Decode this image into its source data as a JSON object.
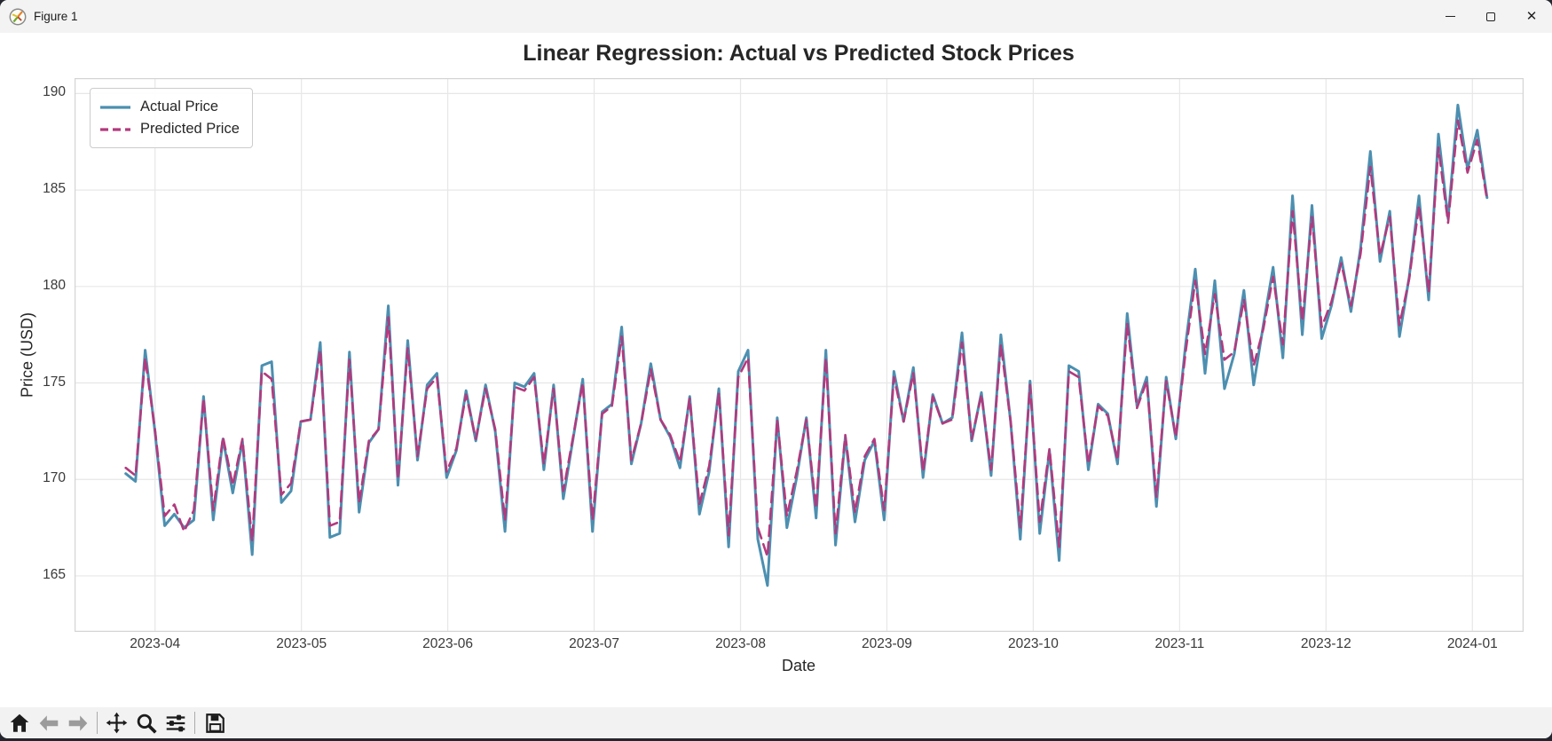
{
  "window": {
    "title": "Figure 1",
    "app_icon": "matplotlib-logo",
    "controls": [
      "minimize",
      "maximize",
      "close"
    ]
  },
  "chart_data": {
    "type": "line",
    "title": "Linear Regression: Actual vs Predicted Stock Prices",
    "xlabel": "Date",
    "ylabel": "Price (USD)",
    "grid": true,
    "legend_position": "upper left",
    "x_tick_labels": [
      "2023-04",
      "2023-05",
      "2023-06",
      "2023-07",
      "2023-08",
      "2023-09",
      "2023-10",
      "2023-11",
      "2023-12",
      "2024-01"
    ],
    "y_ticks": [
      165,
      170,
      175,
      180,
      185,
      190
    ],
    "ylim": [
      162.1,
      190.8
    ],
    "x_axis": {
      "domain_months": [
        -0.55,
        9.35
      ],
      "data_start_month": -0.2,
      "data_end_month": 9.1
    },
    "series": [
      {
        "name": "Actual Price",
        "color": "#4c8fb0",
        "style": "solid",
        "linewidth": 3,
        "values": [
          170.3,
          169.9,
          176.7,
          172.5,
          167.6,
          168.2,
          167.5,
          167.9,
          174.3,
          167.9,
          172.1,
          169.3,
          172.0,
          166.1,
          175.9,
          176.1,
          168.8,
          169.4,
          173.0,
          173.1,
          177.1,
          167.0,
          167.2,
          176.6,
          168.3,
          171.9,
          172.6,
          179.0,
          169.7,
          177.2,
          171.0,
          174.9,
          175.5,
          170.1,
          171.5,
          174.6,
          172.0,
          174.9,
          172.5,
          167.3,
          175.0,
          174.8,
          175.5,
          170.5,
          174.9,
          169.0,
          172.1,
          175.2,
          167.3,
          173.5,
          173.9,
          177.9,
          170.8,
          172.9,
          176.0,
          173.1,
          172.2,
          170.6,
          174.3,
          168.2,
          170.4,
          174.7,
          166.5,
          175.6,
          176.7,
          166.9,
          164.5,
          173.2,
          167.5,
          170.1,
          173.2,
          168.0,
          176.7,
          166.6,
          172.2,
          167.8,
          171.0,
          172.0,
          167.9,
          175.6,
          173.0,
          175.8,
          170.1,
          174.4,
          172.9,
          173.2,
          177.6,
          172.0,
          174.5,
          170.2,
          177.5,
          173.0,
          166.9,
          175.1,
          167.2,
          171.5,
          165.8,
          175.9,
          175.6,
          170.5,
          173.9,
          173.4,
          170.8,
          178.6,
          173.8,
          175.3,
          168.6,
          175.3,
          172.1,
          177.0,
          180.9,
          175.5,
          180.3,
          174.7,
          176.5,
          179.8,
          174.9,
          178.0,
          181.0,
          176.3,
          184.7,
          177.5,
          184.2,
          177.3,
          179.0,
          181.5,
          178.7,
          182.0,
          187.0,
          181.3,
          183.9,
          177.4,
          180.5,
          184.7,
          179.3,
          187.9,
          183.5,
          189.4,
          186.1,
          188.1,
          184.6
        ]
      },
      {
        "name": "Predicted Price",
        "color": "#b23a7e",
        "style": "dashed",
        "linewidth": 2.6,
        "values": [
          170.6,
          170.2,
          176.3,
          172.6,
          168.1,
          168.7,
          167.3,
          168.4,
          174.2,
          168.4,
          172.2,
          169.7,
          172.1,
          166.8,
          175.6,
          175.2,
          169.2,
          169.8,
          173.0,
          173.1,
          176.7,
          167.6,
          167.8,
          176.2,
          168.8,
          172.0,
          172.6,
          178.4,
          170.0,
          176.8,
          171.2,
          174.7,
          175.3,
          170.4,
          171.6,
          174.4,
          172.1,
          174.7,
          172.6,
          167.9,
          174.8,
          174.6,
          175.3,
          170.8,
          174.7,
          169.4,
          172.2,
          175.0,
          167.9,
          173.4,
          173.8,
          177.4,
          171.0,
          172.9,
          175.7,
          173.1,
          172.3,
          170.9,
          174.2,
          168.7,
          170.7,
          174.5,
          167.1,
          175.3,
          176.3,
          167.5,
          166.0,
          173.1,
          168.1,
          170.4,
          173.1,
          168.5,
          176.3,
          167.2,
          172.3,
          168.3,
          171.2,
          172.1,
          168.4,
          175.3,
          173.0,
          175.5,
          170.4,
          174.3,
          172.9,
          173.1,
          177.1,
          172.1,
          174.4,
          170.5,
          177.0,
          173.0,
          167.5,
          174.9,
          167.8,
          171.6,
          166.5,
          175.6,
          175.3,
          170.8,
          173.8,
          173.3,
          171.0,
          178.1,
          173.7,
          175.1,
          169.1,
          175.1,
          172.2,
          176.6,
          180.3,
          176.5,
          179.6,
          176.2,
          176.6,
          179.3,
          175.9,
          177.8,
          180.5,
          177.0,
          183.9,
          178.2,
          183.6,
          177.9,
          179.2,
          181.2,
          179.0,
          181.7,
          186.2,
          181.6,
          183.6,
          178.0,
          180.4,
          184.2,
          179.7,
          187.2,
          183.3,
          188.6,
          185.9,
          187.6,
          184.5
        ]
      }
    ]
  },
  "toolbar": {
    "icons": [
      "home",
      "back",
      "forward",
      "pan",
      "zoom-to-rect",
      "configure-subplots",
      "save"
    ]
  },
  "style": {
    "grid_color": "#e7e7e7",
    "spine_color": "#d4d4d4",
    "plot_bg": "#ffffff"
  }
}
